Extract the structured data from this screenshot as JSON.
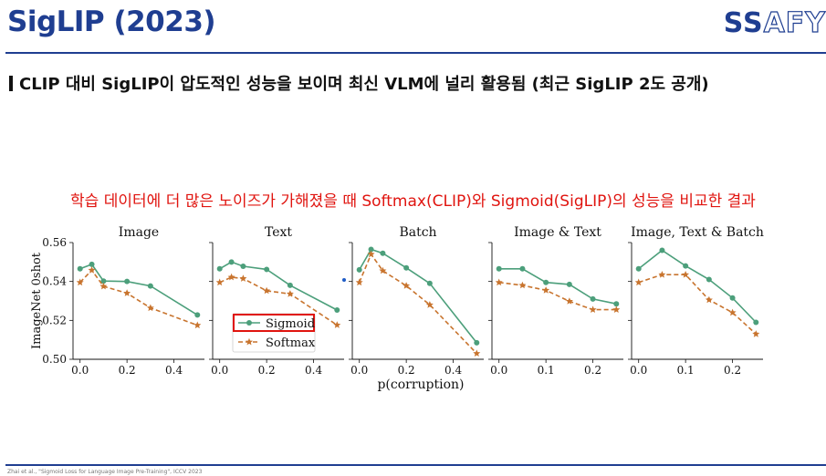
{
  "slide": {
    "title": "SigLIP (2023)",
    "logo": {
      "part1": "SS",
      "part2": "AFY"
    },
    "subtitle": "CLIP 대비 SigLIP이 압도적인 성능을 보이며 최신 VLM에 널리 활용됨 (최근 SigLIP 2도 공개)",
    "caption": "학습 데이터에 더 많은 노이즈가 가해졌을 때 Softmax(CLIP)와 Sigmoid(SigLIP)의 성능을 비교한 결과",
    "footnote": "Zhai et al., \"Sigmoid Loss for Language Image Pre-Training\", ICCV 2023"
  },
  "colors": {
    "brand": "#1f3e91",
    "sigmoid": "#4c9f7b",
    "softmax": "#c8742e",
    "caption": "#e0140f",
    "legend_box": "#e0140f"
  },
  "chart_data": {
    "type": "line",
    "ylabel": "ImageNet 0shot",
    "xlabel": "p(corruption)",
    "ylim": [
      0.5,
      0.56
    ],
    "yticks": [
      "0.50",
      "0.52",
      "0.54",
      "0.56"
    ],
    "legend": {
      "entries": [
        "Sigmoid",
        "Softmax"
      ],
      "panel": 1,
      "placement": "lower-left"
    },
    "panels": [
      {
        "title": "Image",
        "xlim": [
          -0.03,
          0.53
        ],
        "xticks": [
          0.0,
          0.2,
          0.4
        ],
        "xtick_labels": [
          "0.0",
          "0.2",
          "0.4"
        ],
        "x": [
          0.0,
          0.05,
          0.1,
          0.2,
          0.3,
          0.5
        ],
        "series": [
          {
            "name": "Sigmoid",
            "values": [
              0.5465,
              0.5488,
              0.5402,
              0.54,
              0.5377,
              0.5228
            ]
          },
          {
            "name": "Softmax",
            "values": [
              0.5395,
              0.5458,
              0.5375,
              0.534,
              0.5264,
              0.5175
            ]
          }
        ]
      },
      {
        "title": "Text",
        "xlim": [
          -0.03,
          0.53
        ],
        "xticks": [
          0.0,
          0.2,
          0.4
        ],
        "xtick_labels": [
          "0.0",
          "0.2",
          "0.4"
        ],
        "x": [
          0.0,
          0.05,
          0.1,
          0.2,
          0.3,
          0.5
        ],
        "series": [
          {
            "name": "Sigmoid",
            "values": [
              0.5465,
              0.55,
              0.5478,
              0.5462,
              0.538,
              0.5253
            ]
          },
          {
            "name": "Softmax",
            "values": [
              0.5395,
              0.5422,
              0.5415,
              0.5352,
              0.5336,
              0.5176
            ]
          }
        ]
      },
      {
        "title": "Batch",
        "xlim": [
          -0.03,
          0.53
        ],
        "xticks": [
          0.0,
          0.2,
          0.4
        ],
        "xtick_labels": [
          "0.0",
          "0.2",
          "0.4"
        ],
        "x": [
          0.0,
          0.05,
          0.1,
          0.2,
          0.3,
          0.5
        ],
        "series": [
          {
            "name": "Sigmoid",
            "values": [
              0.546,
              0.5565,
              0.5545,
              0.547,
              0.539,
              0.5085
            ]
          },
          {
            "name": "Softmax",
            "values": [
              0.5395,
              0.554,
              0.5455,
              0.5378,
              0.528,
              0.503
            ]
          }
        ]
      },
      {
        "title": "Image & Text",
        "xlim": [
          -0.015,
          0.265
        ],
        "xticks": [
          0.0,
          0.1,
          0.2
        ],
        "xtick_labels": [
          "0.0",
          "0.1",
          "0.2"
        ],
        "x": [
          0.0,
          0.05,
          0.1,
          0.15,
          0.2,
          0.25
        ],
        "series": [
          {
            "name": "Sigmoid",
            "values": [
              0.5465,
              0.5465,
              0.5395,
              0.5385,
              0.531,
              0.5285
            ]
          },
          {
            "name": "Softmax",
            "values": [
              0.5395,
              0.538,
              0.5355,
              0.5298,
              0.5255,
              0.5255
            ]
          }
        ]
      },
      {
        "title": "Image, Text & Batch",
        "xlim": [
          -0.015,
          0.265
        ],
        "xticks": [
          0.0,
          0.1,
          0.2
        ],
        "xtick_labels": [
          "0.0",
          "0.1",
          "0.2"
        ],
        "x": [
          0.0,
          0.05,
          0.1,
          0.15,
          0.2,
          0.25
        ],
        "series": [
          {
            "name": "Sigmoid",
            "values": [
              0.5465,
              0.556,
              0.548,
              0.541,
              0.5315,
              0.519
            ]
          },
          {
            "name": "Softmax",
            "values": [
              0.5395,
              0.5435,
              0.5435,
              0.5305,
              0.524,
              0.513
            ]
          }
        ]
      }
    ]
  }
}
